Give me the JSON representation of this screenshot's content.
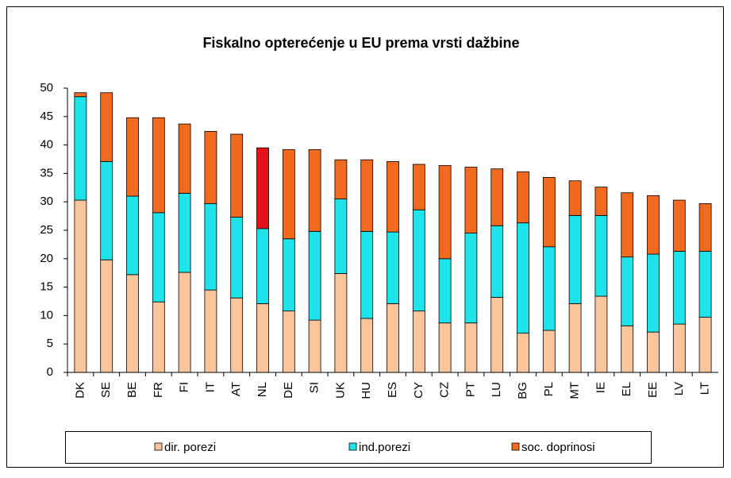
{
  "chart_data": {
    "type": "stacked_bar",
    "title": "Fiskalno opterećenje u EU prema vrsti dažbine",
    "categories": [
      "DK",
      "SE",
      "BE",
      "FR",
      "FI",
      "IT",
      "AT",
      "NL",
      "DE",
      "SI",
      "UK",
      "HU",
      "ES",
      "CY",
      "CZ",
      "PT",
      "LU",
      "BG",
      "PL",
      "MT",
      "IE",
      "EL",
      "EE",
      "LV",
      "LT"
    ],
    "series": [
      {
        "name": "dir. porezi",
        "color": "#fac59a",
        "values": [
          30.3,
          19.8,
          17.2,
          12.4,
          17.6,
          14.5,
          13.1,
          12.1,
          10.8,
          9.2,
          17.4,
          9.5,
          12.1,
          10.8,
          8.7,
          8.7,
          13.2,
          6.9,
          7.4,
          12.1,
          13.4,
          8.2,
          7.1,
          8.5,
          9.7
        ]
      },
      {
        "name": "ind.porezi",
        "color": "#1fe3eb",
        "values": [
          18.2,
          17.3,
          13.8,
          15.7,
          13.9,
          15.2,
          14.2,
          13.2,
          12.7,
          15.6,
          13.1,
          15.3,
          12.6,
          17.8,
          11.3,
          15.8,
          12.6,
          19.4,
          14.7,
          15.5,
          14.2,
          12.1,
          13.7,
          12.8,
          11.6
        ]
      },
      {
        "name": "soc. doprinosi",
        "color": "#f26a1e",
        "colors": [
          "#f26a1e",
          "#f26a1e",
          "#f26a1e",
          "#f26a1e",
          "#f26a1e",
          "#f26a1e",
          "#f26a1e",
          "#e3121b",
          "#f26a1e",
          "#f26a1e",
          "#f26a1e",
          "#f26a1e",
          "#f26a1e",
          "#f26a1e",
          "#f26a1e",
          "#f26a1e",
          "#f26a1e",
          "#f26a1e",
          "#f26a1e",
          "#f26a1e",
          "#f26a1e",
          "#f26a1e",
          "#f26a1e",
          "#f26a1e",
          "#f26a1e"
        ],
        "values": [
          0.7,
          12.1,
          13.8,
          16.7,
          12.2,
          12.7,
          14.6,
          14.2,
          15.7,
          14.4,
          6.9,
          12.6,
          12.4,
          8.0,
          16.4,
          11.6,
          10.0,
          9.0,
          12.2,
          6.1,
          5.0,
          11.3,
          10.3,
          9.0,
          8.4
        ]
      }
    ],
    "ylim": [
      0,
      50
    ],
    "yticks": [
      0,
      5,
      10,
      15,
      20,
      25,
      30,
      35,
      40,
      45,
      50
    ],
    "grid": false,
    "legend": "bottom"
  }
}
